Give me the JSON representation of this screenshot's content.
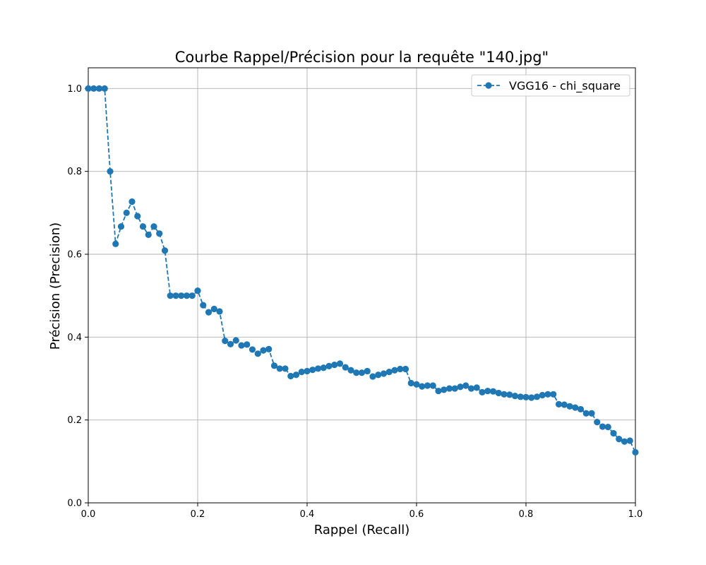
{
  "chart_data": {
    "type": "line",
    "title": "Courbe Rappel/Précision pour la requête \"140.jpg\"",
    "xlabel": "Rappel (Recall)",
    "ylabel": "Précision (Precision)",
    "xlim": [
      0.0,
      1.0
    ],
    "ylim": [
      0.0,
      1.05
    ],
    "xticks": [
      "0.0",
      "0.2",
      "0.4",
      "0.6",
      "0.8",
      "1.0"
    ],
    "yticks": [
      "0.0",
      "0.2",
      "0.4",
      "0.6",
      "0.8",
      "1.0"
    ],
    "grid": true,
    "legend_position": "top-right",
    "series": [
      {
        "name": "VGG16 - chi_square",
        "color": "#1f77b4",
        "line_style": "dashed",
        "marker": "circle",
        "x": [
          0.0,
          0.01,
          0.02,
          0.03,
          0.04,
          0.05,
          0.06,
          0.07,
          0.08,
          0.09,
          0.1,
          0.11,
          0.12,
          0.13,
          0.14,
          0.15,
          0.16,
          0.17,
          0.18,
          0.19,
          0.2,
          0.21,
          0.22,
          0.23,
          0.24,
          0.25,
          0.26,
          0.27,
          0.28,
          0.29,
          0.3,
          0.31,
          0.32,
          0.33,
          0.34,
          0.35,
          0.36,
          0.37,
          0.38,
          0.39,
          0.4,
          0.41,
          0.42,
          0.43,
          0.44,
          0.45,
          0.46,
          0.47,
          0.48,
          0.49,
          0.5,
          0.51,
          0.52,
          0.53,
          0.54,
          0.55,
          0.56,
          0.57,
          0.58,
          0.59,
          0.6,
          0.61,
          0.62,
          0.63,
          0.64,
          0.65,
          0.66,
          0.67,
          0.68,
          0.69,
          0.7,
          0.71,
          0.72,
          0.73,
          0.74,
          0.75,
          0.76,
          0.77,
          0.78,
          0.79,
          0.8,
          0.81,
          0.82,
          0.83,
          0.84,
          0.85,
          0.86,
          0.87,
          0.88,
          0.89,
          0.9,
          0.91,
          0.92,
          0.93,
          0.94,
          0.95,
          0.96,
          0.97,
          0.98,
          0.99,
          1.0
        ],
        "y": [
          1.0,
          1.0,
          1.0,
          1.0,
          0.8,
          0.625,
          0.667,
          0.7,
          0.727,
          0.692,
          0.667,
          0.647,
          0.667,
          0.65,
          0.609,
          0.5,
          0.5,
          0.5,
          0.5,
          0.5,
          0.512,
          0.477,
          0.46,
          0.468,
          0.462,
          0.391,
          0.383,
          0.392,
          0.38,
          0.382,
          0.37,
          0.36,
          0.368,
          0.371,
          0.331,
          0.324,
          0.324,
          0.306,
          0.309,
          0.316,
          0.318,
          0.321,
          0.324,
          0.326,
          0.33,
          0.333,
          0.336,
          0.327,
          0.32,
          0.314,
          0.314,
          0.318,
          0.305,
          0.309,
          0.312,
          0.316,
          0.32,
          0.323,
          0.323,
          0.289,
          0.286,
          0.281,
          0.283,
          0.283,
          0.27,
          0.273,
          0.276,
          0.276,
          0.28,
          0.283,
          0.276,
          0.278,
          0.267,
          0.27,
          0.269,
          0.265,
          0.262,
          0.261,
          0.258,
          0.256,
          0.255,
          0.254,
          0.256,
          0.26,
          0.262,
          0.262,
          0.238,
          0.237,
          0.233,
          0.23,
          0.226,
          0.216,
          0.216,
          0.195,
          0.184,
          0.183,
          0.168,
          0.154,
          0.148,
          0.15,
          0.122
        ]
      }
    ]
  }
}
